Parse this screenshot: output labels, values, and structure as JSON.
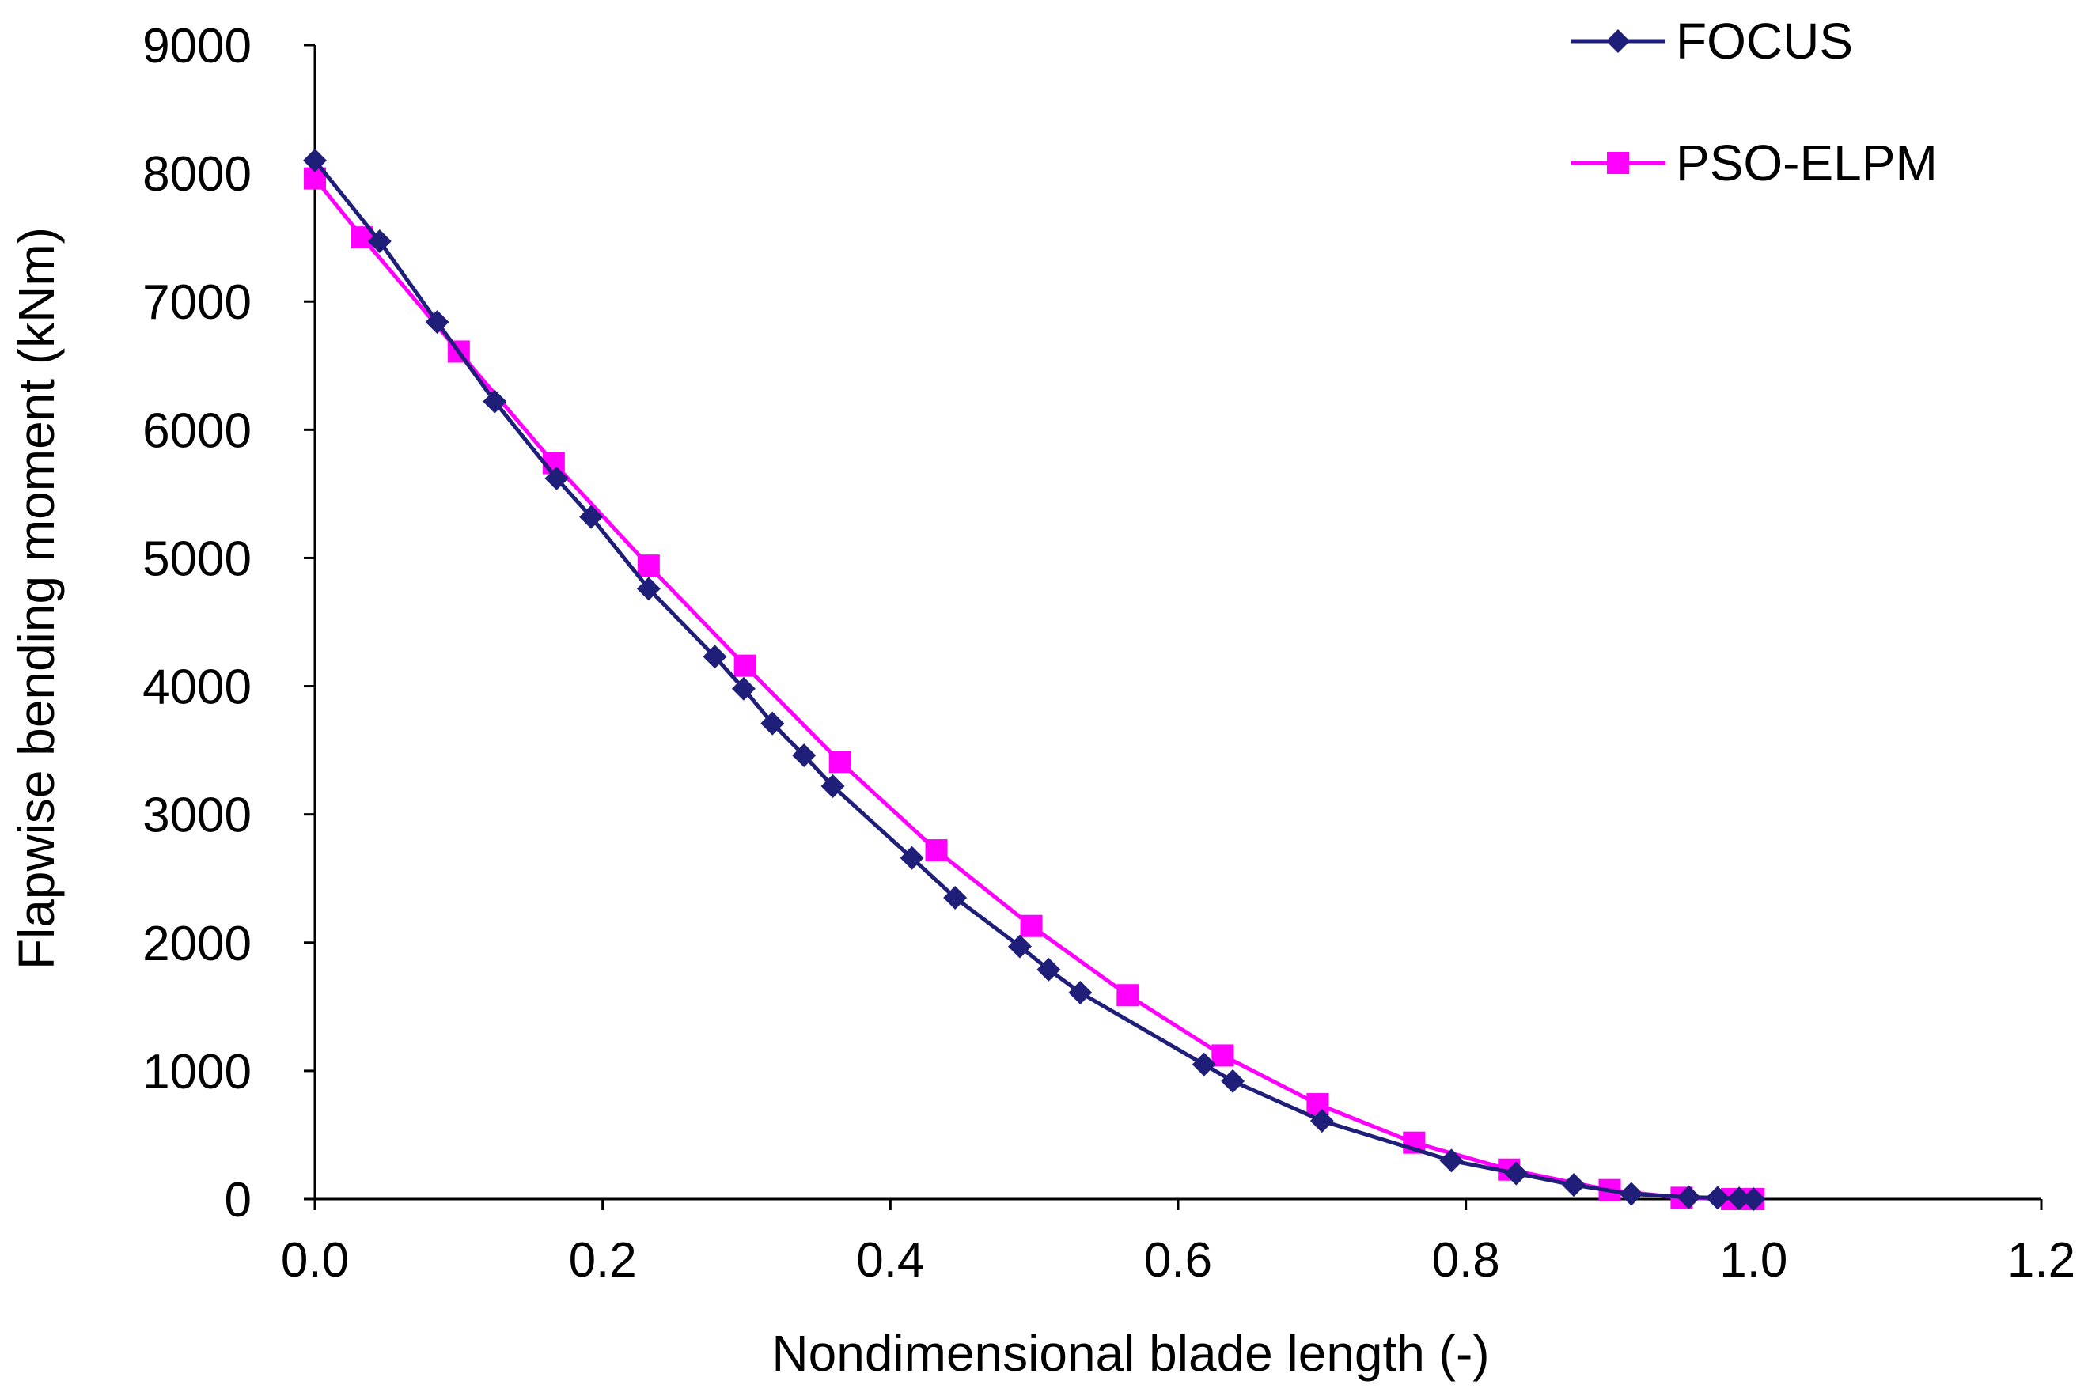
{
  "chart_data": {
    "type": "line",
    "title": "",
    "xlabel": "Nondimensional blade length (-)",
    "ylabel": "Flapwise bending moment (kNm)",
    "xlim": [
      0.0,
      1.2
    ],
    "ylim": [
      0,
      9000
    ],
    "x_ticks": [
      "0.0",
      "0.2",
      "0.4",
      "0.6",
      "0.8",
      "1.0",
      "1.2"
    ],
    "y_ticks": [
      "0",
      "1000",
      "2000",
      "3000",
      "4000",
      "5000",
      "6000",
      "7000",
      "8000",
      "9000"
    ],
    "grid": false,
    "legend_position": "top-right",
    "series": [
      {
        "name": "FOCUS",
        "color": "#1f1f7a",
        "marker": "diamond",
        "x": [
          0.0,
          0.045,
          0.085,
          0.125,
          0.168,
          0.192,
          0.232,
          0.278,
          0.298,
          0.318,
          0.34,
          0.36,
          0.415,
          0.445,
          0.49,
          0.51,
          0.532,
          0.618,
          0.638,
          0.7,
          0.79,
          0.835,
          0.875,
          0.915,
          0.955,
          0.975,
          0.99,
          1.0
        ],
        "values": [
          8100,
          7470,
          6840,
          6220,
          5620,
          5320,
          4760,
          4230,
          3980,
          3710,
          3460,
          3220,
          2660,
          2350,
          1970,
          1790,
          1610,
          1050,
          920,
          610,
          300,
          200,
          110,
          40,
          15,
          10,
          5,
          0
        ]
      },
      {
        "name": "PSO-ELPM",
        "color": "#ff00ff",
        "marker": "square",
        "x": [
          0.0,
          0.033,
          0.1,
          0.166,
          0.232,
          0.299,
          0.365,
          0.432,
          0.498,
          0.565,
          0.631,
          0.697,
          0.764,
          0.83,
          0.9,
          0.95,
          0.985,
          1.0
        ],
        "values": [
          7960,
          7500,
          6610,
          5740,
          4940,
          4160,
          3410,
          2720,
          2130,
          1590,
          1120,
          740,
          440,
          230,
          70,
          10,
          0,
          0
        ]
      }
    ]
  }
}
